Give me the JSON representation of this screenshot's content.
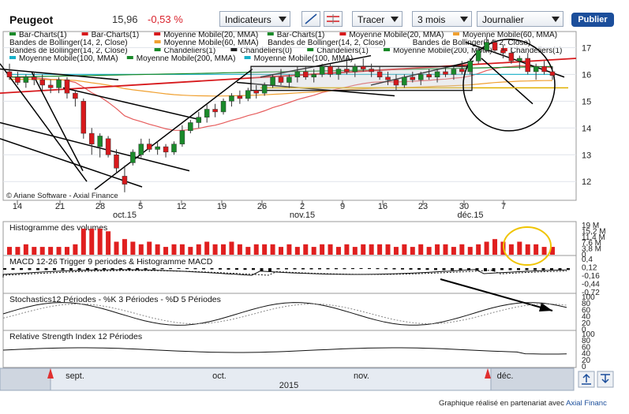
{
  "header": {
    "title": "Peugeot",
    "price": "15,96",
    "change": "-0,53 %",
    "indicators_label": "Indicateurs",
    "draw_label": "Tracer",
    "period_value": "3 mois",
    "interval_value": "Journalier",
    "publish_label": "Publier",
    "colors": {
      "negative": "#d9232d",
      "brand": "#1b4e9b"
    }
  },
  "legend": {
    "rows": [
      [
        {
          "color": "#1a8a2a",
          "label": "Bar-Charts(1)"
        },
        {
          "color": "#d7191c",
          "label": "Bar-Charts(1)"
        },
        {
          "color": "#d7191c",
          "label": "Moyenne Mobile(20, MMA)"
        },
        {
          "color": "#1a8a2a",
          "label": "Bar-Charts(1)"
        },
        {
          "color": "#d7191c",
          "label": "Moyenne Mobile(20, MMA)"
        },
        {
          "color": "#f0a030",
          "label": "Moyenne Mobile(60, MMA)"
        }
      ],
      [
        {
          "color": "",
          "label": "Bandes de Bollinger(14, 2, Close)"
        },
        {
          "color": "#f0a030",
          "label": "Moyenne Mobile(60, MMA)"
        },
        {
          "color": "",
          "label": "Bandes de Bollinger(14, 2, Close)"
        },
        {
          "color": "",
          "label": "Bandes de Bollinger(14, 2, Close)"
        }
      ],
      [
        {
          "color": "",
          "label": "Bandes de Bollinger(14, 2, Close)"
        },
        {
          "color": "#1a8a2a",
          "label": "Chandeliers(1)"
        },
        {
          "color": "#222222",
          "label": "Chandeliers(0)"
        },
        {
          "color": "#1a8a2a",
          "label": "Chandeliers(1)"
        },
        {
          "color": "#1a8a2a",
          "label": "Moyenne Mobile(200, MMA)"
        },
        {
          "color": "#d7191c",
          "label": "Chandeliers(1)"
        }
      ],
      [
        {
          "color": "#18b0c8",
          "label": "Moyenne Mobile(100, MMA)"
        },
        {
          "color": "#1a8a2a",
          "label": "Moyenne Mobile(200, MMA)"
        },
        {
          "color": "#18b0c8",
          "label": "Moyenne Mobile(100, MMA)"
        }
      ]
    ]
  },
  "watermark": "© Ariane Software - Axial Finance",
  "chart_data": {
    "type": "candlestick",
    "price_axis": {
      "ticks": [
        "12",
        "13",
        "14",
        "15",
        "16",
        "17"
      ],
      "ylim": [
        11.3,
        17.6
      ]
    },
    "date_axis": {
      "day_ticks": [
        "14",
        "21",
        "28",
        "5",
        "12",
        "19",
        "26",
        "2",
        "9",
        "16",
        "23",
        "30",
        "7"
      ],
      "month_labels": [
        "oct.15",
        "nov.15",
        "déc.15"
      ]
    },
    "candles": [
      {
        "o": 16.1,
        "h": 16.4,
        "l": 15.8,
        "c": 15.9
      },
      {
        "o": 15.9,
        "h": 16.1,
        "l": 15.6,
        "c": 15.7
      },
      {
        "o": 15.7,
        "h": 16.0,
        "l": 15.5,
        "c": 15.9
      },
      {
        "o": 15.9,
        "h": 16.1,
        "l": 15.6,
        "c": 15.8
      },
      {
        "o": 15.8,
        "h": 16.0,
        "l": 15.4,
        "c": 15.6
      },
      {
        "o": 15.6,
        "h": 15.8,
        "l": 15.3,
        "c": 15.5
      },
      {
        "o": 15.5,
        "h": 15.9,
        "l": 15.3,
        "c": 15.8
      },
      {
        "o": 15.8,
        "h": 15.9,
        "l": 15.1,
        "c": 15.3
      },
      {
        "o": 15.3,
        "h": 15.4,
        "l": 14.8,
        "c": 15.1
      },
      {
        "o": 15.0,
        "h": 15.1,
        "l": 13.6,
        "c": 13.8
      },
      {
        "o": 13.8,
        "h": 14.0,
        "l": 13.0,
        "c": 13.4
      },
      {
        "o": 13.3,
        "h": 13.8,
        "l": 12.9,
        "c": 13.7
      },
      {
        "o": 13.6,
        "h": 13.7,
        "l": 12.9,
        "c": 13.0
      },
      {
        "o": 13.0,
        "h": 13.2,
        "l": 12.3,
        "c": 12.5
      },
      {
        "o": 12.2,
        "h": 12.6,
        "l": 11.6,
        "c": 11.9
      },
      {
        "o": 12.7,
        "h": 13.2,
        "l": 12.6,
        "c": 13.1
      },
      {
        "o": 13.0,
        "h": 13.6,
        "l": 12.9,
        "c": 13.4
      },
      {
        "o": 13.4,
        "h": 13.6,
        "l": 13.1,
        "c": 13.2
      },
      {
        "o": 13.2,
        "h": 13.5,
        "l": 13.0,
        "c": 13.3
      },
      {
        "o": 13.3,
        "h": 13.4,
        "l": 12.9,
        "c": 13.1
      },
      {
        "o": 13.1,
        "h": 13.5,
        "l": 13.0,
        "c": 13.4
      },
      {
        "o": 13.4,
        "h": 14.1,
        "l": 13.3,
        "c": 13.9
      },
      {
        "o": 13.9,
        "h": 14.3,
        "l": 13.8,
        "c": 14.2
      },
      {
        "o": 14.2,
        "h": 14.6,
        "l": 14.0,
        "c": 14.4
      },
      {
        "o": 14.4,
        "h": 14.9,
        "l": 14.2,
        "c": 14.7
      },
      {
        "o": 14.7,
        "h": 14.9,
        "l": 14.4,
        "c": 14.6
      },
      {
        "o": 14.6,
        "h": 15.1,
        "l": 14.5,
        "c": 15.0
      },
      {
        "o": 15.0,
        "h": 15.3,
        "l": 14.8,
        "c": 15.2
      },
      {
        "o": 15.2,
        "h": 15.4,
        "l": 14.9,
        "c": 15.1
      },
      {
        "o": 15.1,
        "h": 15.5,
        "l": 15.0,
        "c": 15.4
      },
      {
        "o": 15.4,
        "h": 15.6,
        "l": 15.1,
        "c": 15.3
      },
      {
        "o": 15.3,
        "h": 15.7,
        "l": 15.2,
        "c": 15.6
      },
      {
        "o": 15.6,
        "h": 16.0,
        "l": 15.5,
        "c": 15.9
      },
      {
        "o": 15.9,
        "h": 16.2,
        "l": 15.6,
        "c": 15.7
      },
      {
        "o": 15.7,
        "h": 16.0,
        "l": 15.5,
        "c": 15.9
      },
      {
        "o": 15.9,
        "h": 16.3,
        "l": 15.7,
        "c": 16.1
      },
      {
        "o": 16.1,
        "h": 16.3,
        "l": 15.8,
        "c": 15.9
      },
      {
        "o": 15.9,
        "h": 16.2,
        "l": 15.7,
        "c": 16.0
      },
      {
        "o": 16.0,
        "h": 16.4,
        "l": 15.9,
        "c": 16.3
      },
      {
        "o": 16.3,
        "h": 16.4,
        "l": 15.9,
        "c": 16.0
      },
      {
        "o": 16.0,
        "h": 16.3,
        "l": 15.8,
        "c": 16.2
      },
      {
        "o": 16.2,
        "h": 16.5,
        "l": 16.0,
        "c": 16.1
      },
      {
        "o": 16.1,
        "h": 16.4,
        "l": 15.9,
        "c": 16.3
      },
      {
        "o": 16.3,
        "h": 16.6,
        "l": 16.1,
        "c": 16.2
      },
      {
        "o": 16.2,
        "h": 16.4,
        "l": 15.9,
        "c": 16.1
      },
      {
        "o": 16.1,
        "h": 16.3,
        "l": 15.8,
        "c": 15.9
      },
      {
        "o": 15.9,
        "h": 16.1,
        "l": 15.6,
        "c": 15.8
      },
      {
        "o": 15.8,
        "h": 16.0,
        "l": 15.4,
        "c": 15.6
      },
      {
        "o": 15.6,
        "h": 16.0,
        "l": 15.5,
        "c": 15.9
      },
      {
        "o": 15.9,
        "h": 16.1,
        "l": 15.7,
        "c": 15.8
      },
      {
        "o": 15.8,
        "h": 16.1,
        "l": 15.6,
        "c": 16.0
      },
      {
        "o": 16.0,
        "h": 16.2,
        "l": 15.8,
        "c": 15.9
      },
      {
        "o": 15.9,
        "h": 16.2,
        "l": 15.7,
        "c": 16.1
      },
      {
        "o": 16.1,
        "h": 16.3,
        "l": 15.9,
        "c": 16.0
      },
      {
        "o": 16.0,
        "h": 16.3,
        "l": 15.8,
        "c": 16.2
      },
      {
        "o": 16.2,
        "h": 16.5,
        "l": 16.0,
        "c": 16.1
      },
      {
        "o": 16.1,
        "h": 16.6,
        "l": 16.0,
        "c": 16.5
      },
      {
        "o": 16.5,
        "h": 17.0,
        "l": 16.4,
        "c": 16.9
      },
      {
        "o": 16.9,
        "h": 17.4,
        "l": 16.8,
        "c": 17.2
      },
      {
        "o": 17.2,
        "h": 17.3,
        "l": 16.8,
        "c": 16.9
      },
      {
        "o": 16.9,
        "h": 17.1,
        "l": 16.6,
        "c": 16.8
      },
      {
        "o": 16.8,
        "h": 17.0,
        "l": 16.4,
        "c": 16.5
      },
      {
        "o": 16.5,
        "h": 16.7,
        "l": 16.2,
        "c": 16.6
      },
      {
        "o": 16.6,
        "h": 16.8,
        "l": 16.0,
        "c": 16.1
      },
      {
        "o": 16.1,
        "h": 16.4,
        "l": 15.8,
        "c": 16.3
      },
      {
        "o": 16.3,
        "h": 16.5,
        "l": 16.0,
        "c": 16.1
      },
      {
        "o": 16.1,
        "h": 16.3,
        "l": 15.8,
        "c": 15.96
      }
    ],
    "volume_panel": {
      "title": "Histogramme des volumes",
      "ticks": [
        "19 M",
        "15,2 M",
        "11,4 M",
        "7,6 M",
        "3,8 M",
        "0"
      ]
    },
    "macd_panel": {
      "title": "MACD 12-26   Trigger 9 periodes & Histogramme MACD",
      "ticks": [
        "0,4",
        "0,12",
        "-0,16",
        "-0,44",
        "-0,72"
      ]
    },
    "stoch_panel": {
      "title": "Stochastics12 Périodes  -  %K 3 Périodes  -  %D 5 Périodes",
      "ticks": [
        "100",
        "80",
        "60",
        "40",
        "20",
        "0"
      ]
    },
    "rsi_panel": {
      "title": "Relative Strength Index 12 Périodes",
      "ticks": [
        "100",
        "80",
        "60",
        "40",
        "20",
        "0"
      ]
    },
    "navigator": {
      "labels": [
        "sept.",
        "oct.",
        "nov.",
        "déc."
      ],
      "year": "2015"
    }
  },
  "footer": {
    "credit_text": "Graphique réalisé en partenariat avec",
    "credit_brand": "Axial Financ"
  }
}
